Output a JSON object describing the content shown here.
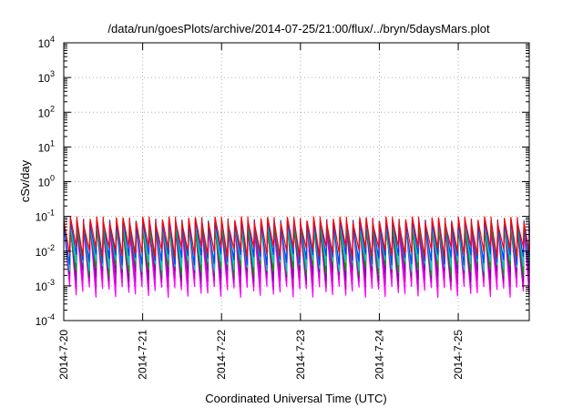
{
  "chart_data": {
    "type": "line",
    "title": "/data/run/goesPlots/archive/2014-07-25/21:00/flux/../bryn/5daysMars.plot",
    "xlabel": "Coordinated Universal Time (UTC)",
    "ylabel": "cSv/day",
    "x_tick_labels": [
      "2014-7-20",
      "2014-7-21",
      "2014-7-22",
      "2014-7-23",
      "2014-7-24",
      "2014-7-25"
    ],
    "x_range_days": [
      0,
      5.9
    ],
    "y_scale": "log",
    "ylim": [
      0.0001,
      10000
    ],
    "y_tick_labels": [
      {
        "base": "10",
        "exp": "-4"
      },
      {
        "base": "10",
        "exp": "-3"
      },
      {
        "base": "10",
        "exp": "-2"
      },
      {
        "base": "10",
        "exp": "-1"
      },
      {
        "base": "10",
        "exp": "0"
      },
      {
        "base": "10",
        "exp": "1"
      },
      {
        "base": "10",
        "exp": "2"
      },
      {
        "base": "10",
        "exp": "3"
      },
      {
        "base": "10",
        "exp": "4"
      }
    ],
    "grid": true,
    "cycle_hours": 2,
    "series": [
      {
        "color": "#ff00ff",
        "peak": 0.055,
        "trough": 0.0007
      },
      {
        "color": "#cc00cc",
        "peak": 0.05,
        "trough": 0.0012
      },
      {
        "color": "#8800aa",
        "peak": 0.06,
        "trough": 0.002
      },
      {
        "color": "#00a000",
        "peak": 0.05,
        "trough": 0.003
      },
      {
        "color": "#00c8c8",
        "peak": 0.065,
        "trough": 0.004
      },
      {
        "color": "#0044ff",
        "peak": 0.07,
        "trough": 0.006
      },
      {
        "color": "#ff0000",
        "peak": 0.08,
        "trough": 0.01
      }
    ]
  }
}
